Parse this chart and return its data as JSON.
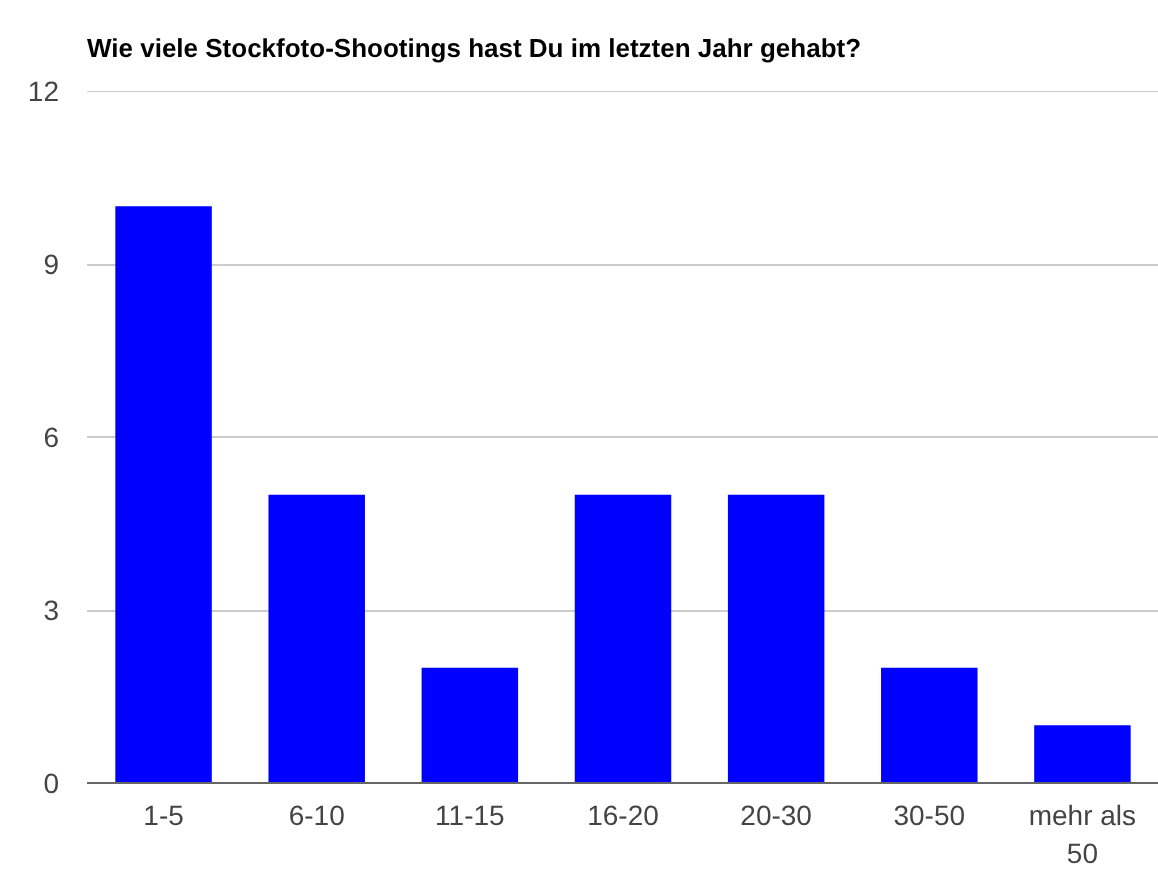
{
  "chart_data": {
    "type": "bar",
    "title": "Wie viele Stockfoto-Shootings hast Du im letzten Jahr gehabt?",
    "categories": [
      "1-5",
      "6-10",
      "11-15",
      "16-20",
      "20-30",
      "30-50",
      "mehr als 50"
    ],
    "values": [
      10,
      5,
      2,
      5,
      5,
      2,
      1
    ],
    "color": "#0000ff",
    "ylim": [
      0,
      12
    ],
    "yticks": [
      0,
      3,
      6,
      9,
      12
    ],
    "grid": "y"
  }
}
